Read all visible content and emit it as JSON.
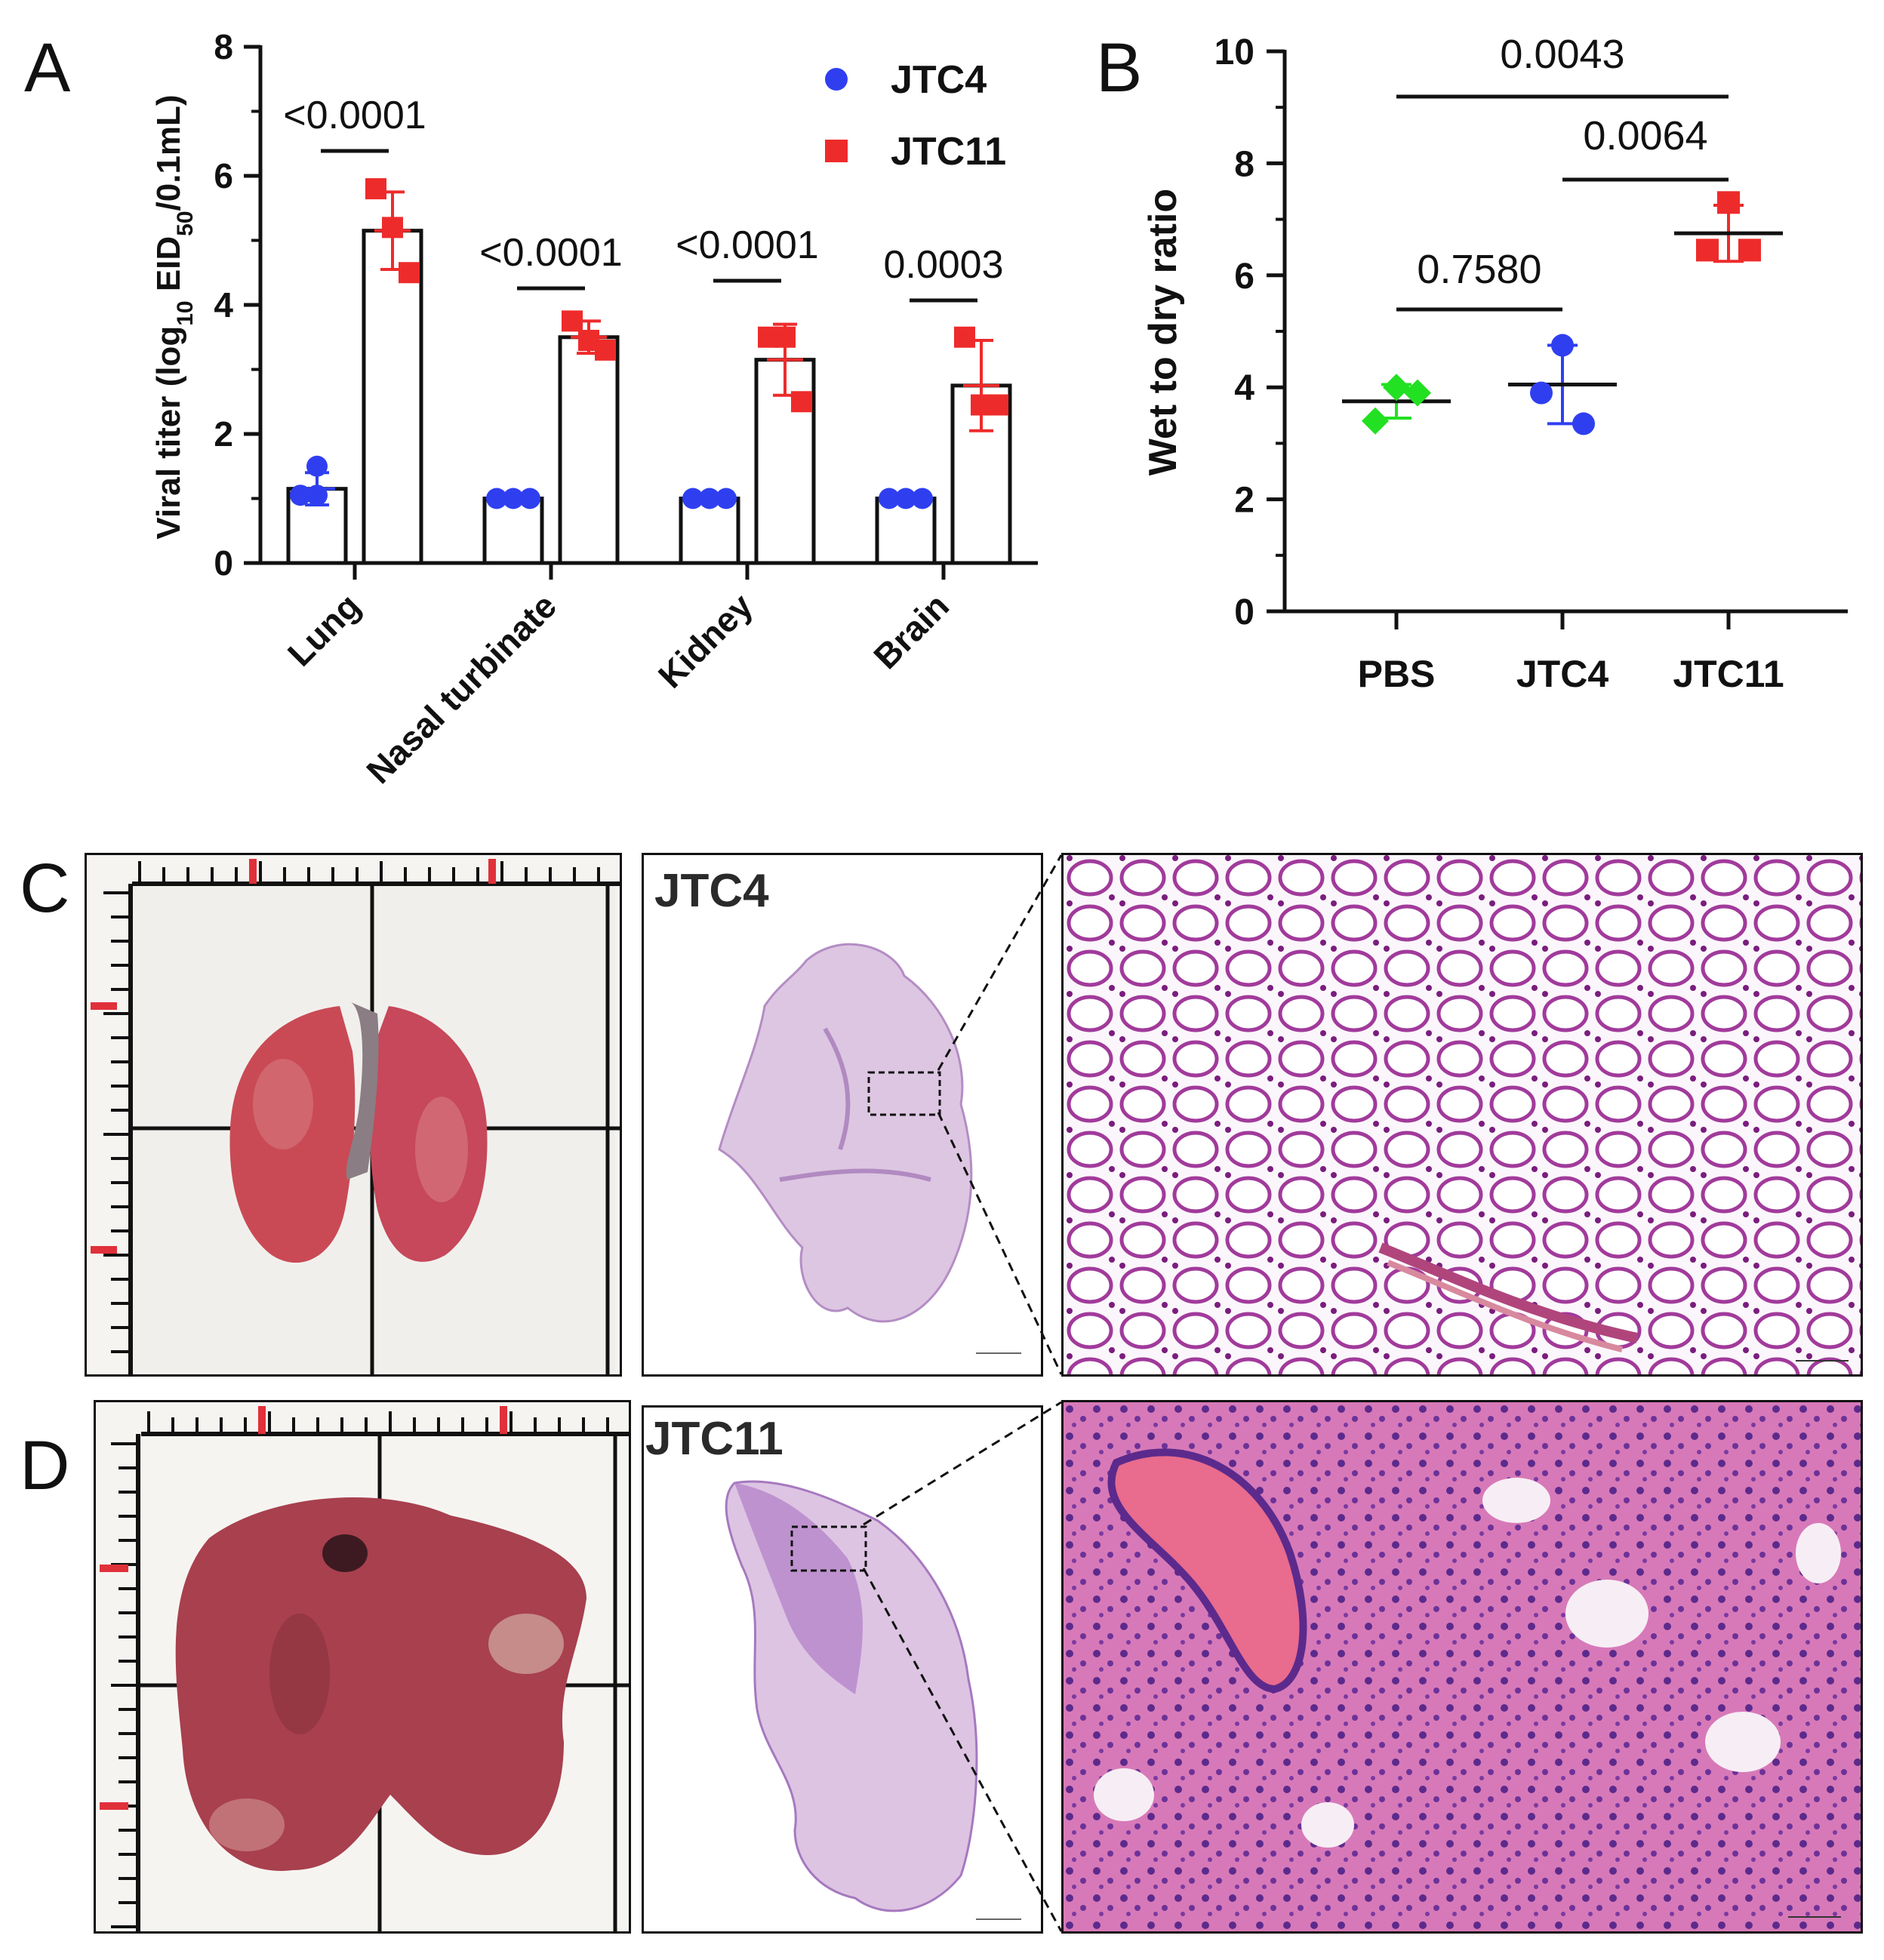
{
  "panels": {
    "A": "A",
    "B": "B",
    "C": "C",
    "D": "D"
  },
  "chart_data": [
    {
      "type": "bar",
      "panel": "A",
      "ylabel_main": "Viral titer (log",
      "ylabel_sub10": "10",
      "ylabel_mid": " EID",
      "ylabel_sub50": "50",
      "ylabel_tail": "/0.1mL)",
      "ylim": [
        0,
        8
      ],
      "yticks": [
        0,
        2,
        4,
        6,
        8
      ],
      "categories": [
        "Lung",
        "Nasal turbinate",
        "Kidney",
        "Brain"
      ],
      "series": [
        {
          "name": "JTC4",
          "color": "#2f3ff0",
          "marker": "circle",
          "values": [
            1.15,
            1.0,
            1.0,
            1.0
          ],
          "errors": [
            0.25,
            0,
            0,
            0
          ],
          "points": [
            [
              1.05,
              1.05,
              1.5
            ],
            [
              1.0,
              1.0,
              1.0
            ],
            [
              1.0,
              1.0,
              1.0
            ],
            [
              1.0,
              1.0,
              1.0
            ]
          ]
        },
        {
          "name": "JTC11",
          "color": "#ee2b2b",
          "marker": "square",
          "values": [
            5.15,
            3.5,
            3.15,
            2.75
          ],
          "errors": [
            0.6,
            0.25,
            0.55,
            0.7
          ],
          "points": [
            [
              5.8,
              5.2,
              4.5
            ],
            [
              3.75,
              3.45,
              3.3
            ],
            [
              3.5,
              3.5,
              2.5
            ],
            [
              3.5,
              2.45,
              2.45
            ]
          ]
        }
      ],
      "p_values": [
        "<0.0001",
        "<0.0001",
        "<0.0001",
        "0.0003"
      ],
      "legend": [
        "JTC4",
        "JTC11"
      ],
      "legend_position": "top-right",
      "grid": false
    },
    {
      "type": "scatter",
      "panel": "B",
      "ylabel": "Wet to dry ratio",
      "ylim": [
        0,
        10
      ],
      "yticks": [
        0,
        2,
        4,
        6,
        8,
        10
      ],
      "categories": [
        "PBS",
        "JTC4",
        "JTC11"
      ],
      "groups": [
        {
          "name": "PBS",
          "color": "#22e022",
          "marker": "diamond",
          "mean": 3.75,
          "sd": 0.3,
          "points": [
            4.0,
            3.4,
            3.9
          ]
        },
        {
          "name": "JTC4",
          "color": "#2f3ff0",
          "marker": "circle",
          "mean": 4.05,
          "sd": 0.7,
          "points": [
            4.75,
            3.9,
            3.35
          ]
        },
        {
          "name": "JTC11",
          "color": "#ee2b2b",
          "marker": "square",
          "mean": 6.75,
          "sd": 0.5,
          "points": [
            7.3,
            6.45,
            6.45
          ]
        }
      ],
      "comparisons": [
        {
          "from": "PBS",
          "to": "JTC4",
          "p": "0.7580"
        },
        {
          "from": "JTC4",
          "to": "JTC11",
          "p": "0.0064"
        },
        {
          "from": "PBS",
          "to": "JTC11",
          "p": "0.0043"
        }
      ],
      "grid": false
    }
  ],
  "images": {
    "jtc4_label": "JTC4",
    "jtc11_label": "JTC11"
  }
}
